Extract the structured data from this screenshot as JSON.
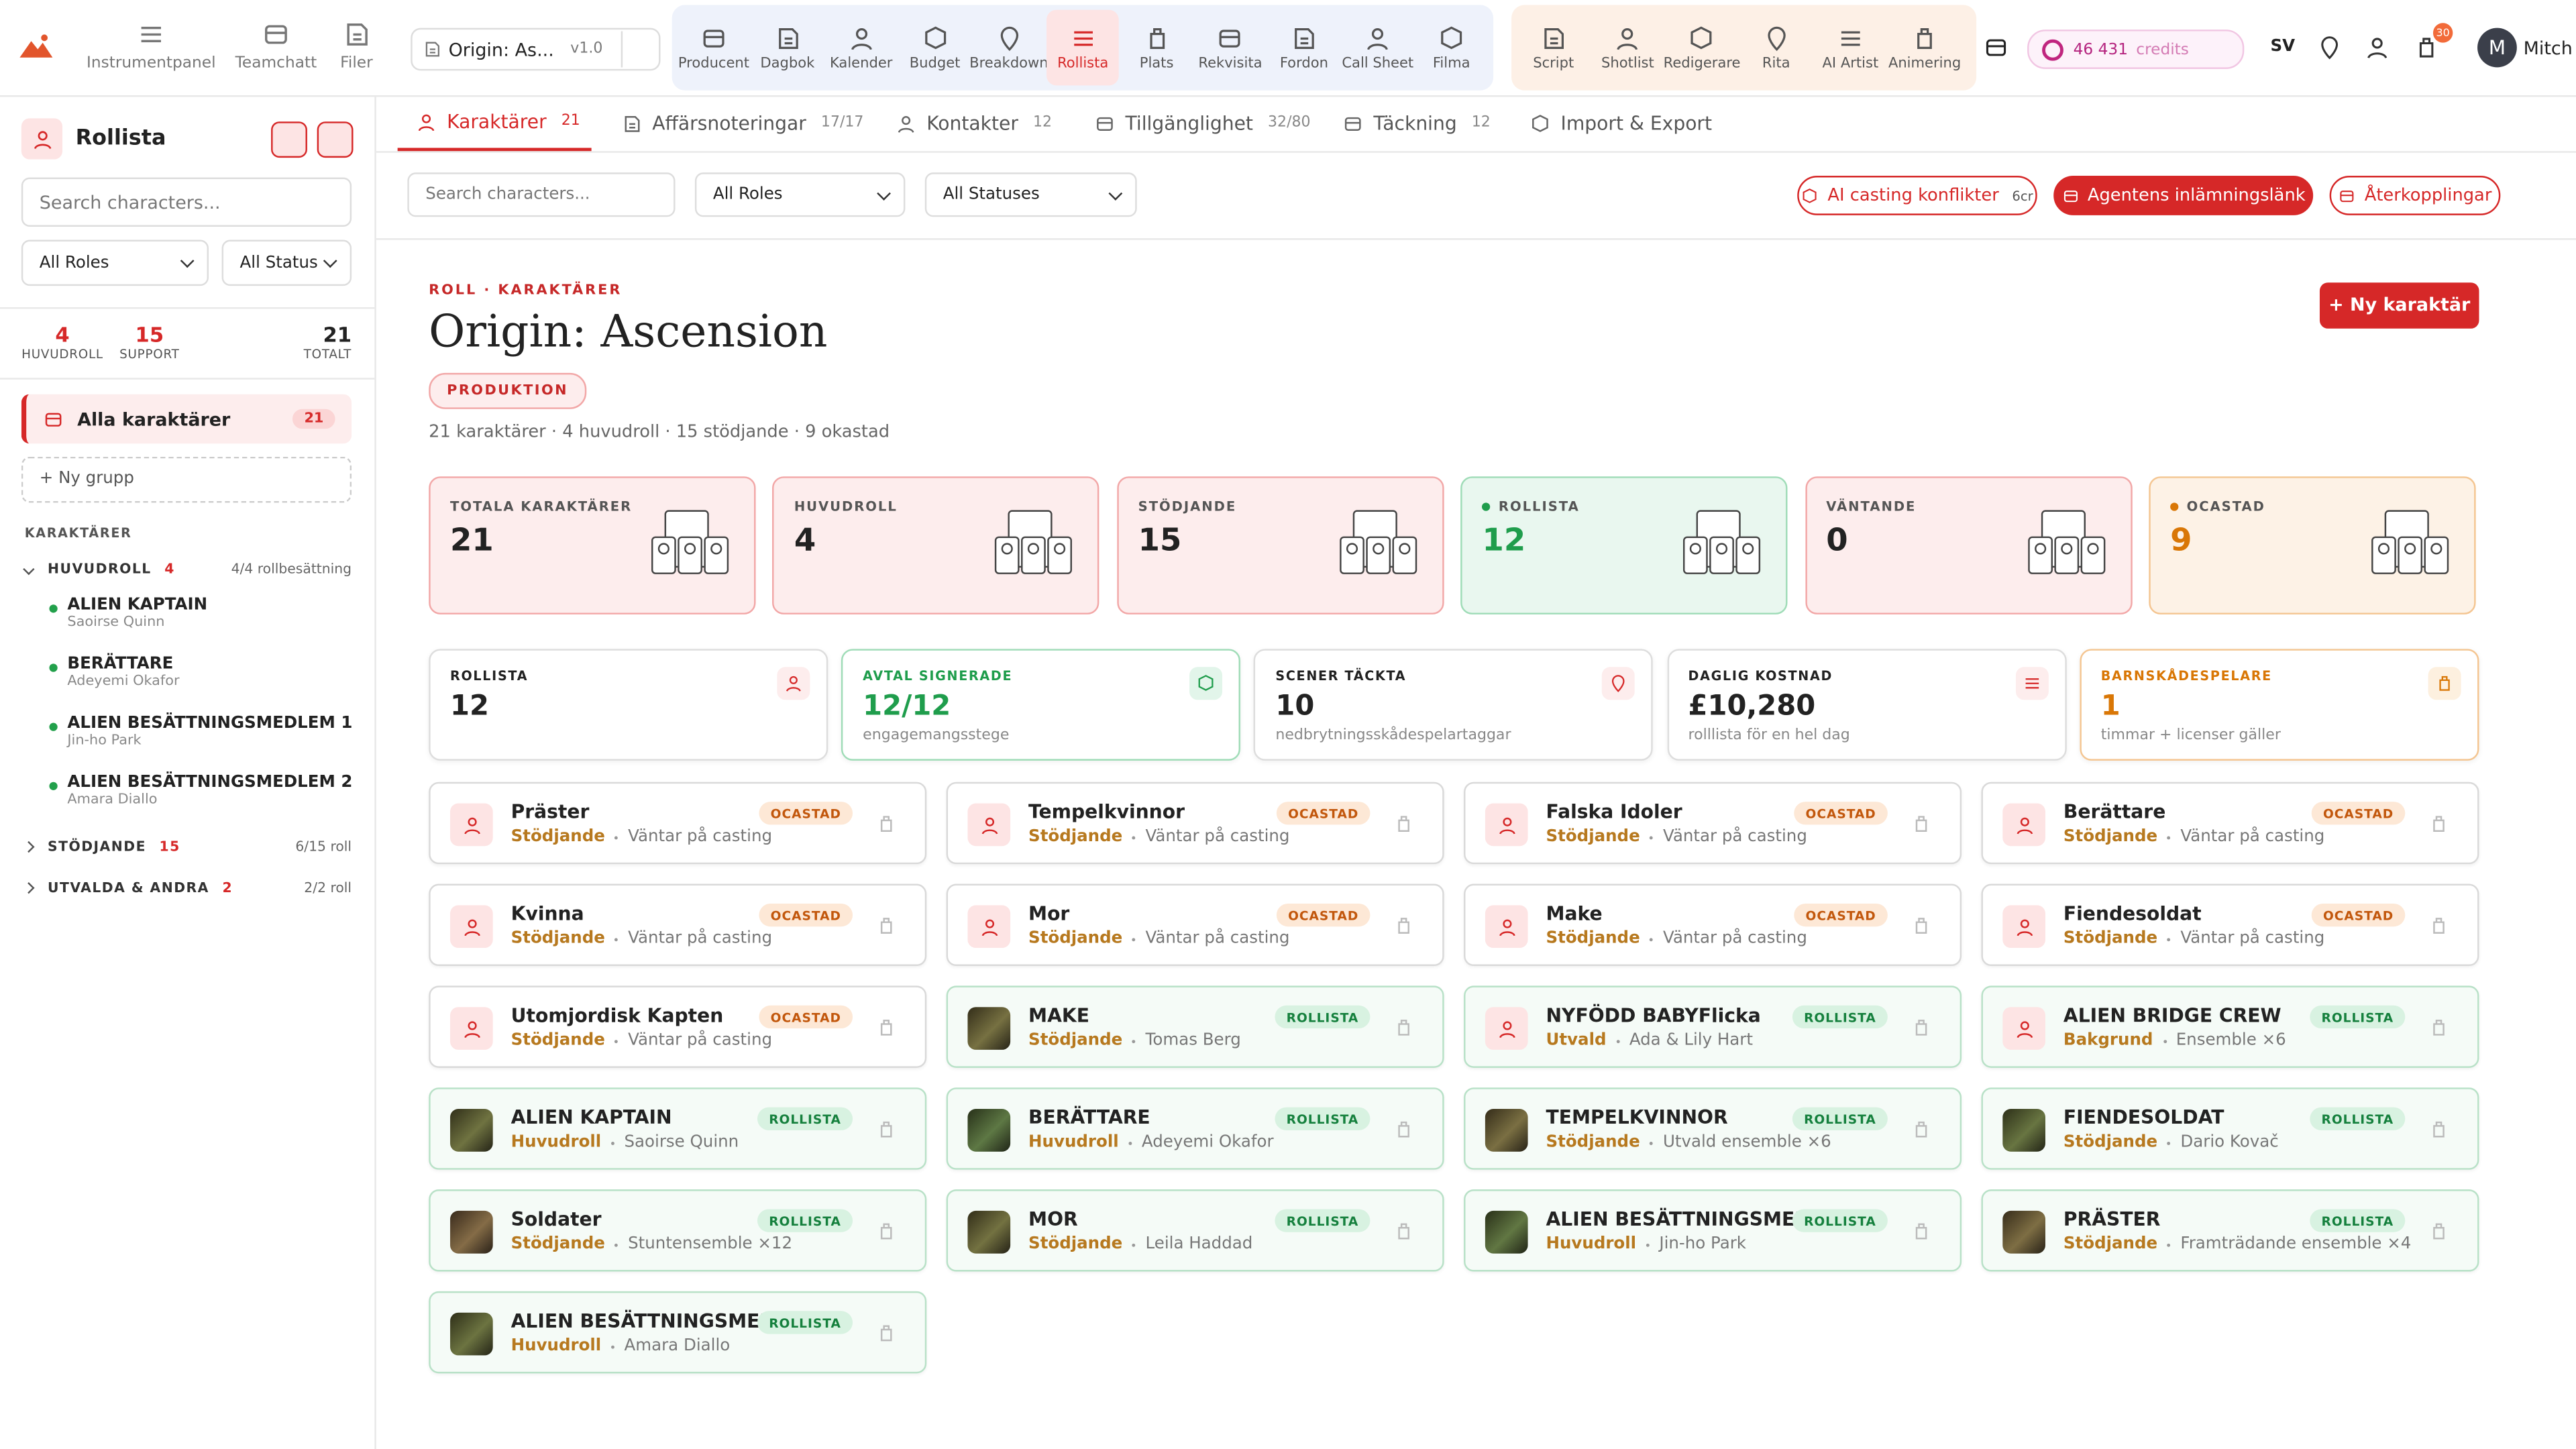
{
  "topbar": {
    "nav": [
      "Instrumentpanel",
      "Teamchatt",
      "Filer"
    ],
    "project": "Origin: As...",
    "version": "v1.0",
    "tools": [
      "Producent",
      "Dagbok",
      "Kalender",
      "Budget",
      "Breakdown",
      "Rollista",
      "Plats",
      "Rekvisita",
      "Fordon",
      "Call Sheet",
      "Filma"
    ],
    "active_tool": 5,
    "creative": [
      "Script",
      "Shotlist",
      "Redigerare",
      "Rita",
      "AI Artist",
      "Animering"
    ],
    "credits": "46 431",
    "credits_label": "credits",
    "language": "SV",
    "notifications": 30,
    "user_initial": "M",
    "user": "Mitch"
  },
  "sidebar": {
    "title": "Rollista",
    "search": "Search characters...",
    "role_filter": "All Roles",
    "status_filter": "All Status",
    "stats": [
      {
        "value": 4,
        "label": "HUVUDROLL"
      },
      {
        "value": 15,
        "label": "SUPPORT"
      },
      {
        "value": 21,
        "label": "TOTALT"
      }
    ],
    "all": {
      "label": "Alla karaktärer",
      "count": 21
    },
    "new_group": "+ Ny grupp",
    "section": "KARAKTÄRER",
    "groups": [
      {
        "name": "HUVUDROLL",
        "count": 4,
        "progress": "4/4 rollbesättning",
        "members": [
          {
            "name": "ALIEN KAPTAIN",
            "actor": "Saoirse Quinn"
          },
          {
            "name": "BERÄTTARE",
            "actor": "Adeyemi Okafor"
          },
          {
            "name": "ALIEN BESÄTTNINGSMEDLEM 1",
            "actor": "Jin-ho Park"
          },
          {
            "name": "ALIEN BESÄTTNINGSMEDLEM 2",
            "actor": "Amara Diallo"
          }
        ]
      },
      {
        "name": "STÖDJANDE",
        "count": 15,
        "progress": "6/15 roll"
      },
      {
        "name": "UTVALDA & ANDRA",
        "count": 2,
        "progress": "2/2 roll"
      }
    ]
  },
  "tabs": {
    "items": [
      {
        "label": "Karaktärer",
        "count": 21
      },
      {
        "label": "Affärsnoteringar",
        "count": "17/17"
      },
      {
        "label": "Kontakter",
        "count": 12
      },
      {
        "label": "Tillgänglighet",
        "count": "32/80"
      },
      {
        "label": "Täckning",
        "count": 12
      },
      {
        "label": "Import & Export"
      }
    ],
    "active": 0
  },
  "filters": {
    "search": "Search characters...",
    "roles": "All Roles",
    "statuses": "All Statuses",
    "actions": [
      {
        "label": "AI casting konflikter",
        "badge": "6cr",
        "style": "outline"
      },
      {
        "label": "Agentens inlämningslänk",
        "style": "solid"
      },
      {
        "label": "Återkopplingar",
        "style": "outline"
      }
    ]
  },
  "header": {
    "eyebrow": "ROLL · KARAKTÄRER",
    "title": "Origin: Ascension",
    "badge": "PRODUKTION",
    "summary": "21 karaktärer · 4 huvudroll · 15 stödjande · 9 okastad",
    "new_button": "+ Ny karaktär"
  },
  "stats": [
    {
      "label": "TOTALA KARAKTÄRER",
      "value": 21,
      "tone": "red"
    },
    {
      "label": "HUVUDROLL",
      "value": 4,
      "tone": "red"
    },
    {
      "label": "STÖDJANDE",
      "value": 15,
      "tone": "red"
    },
    {
      "label": "ROLLISTA",
      "value": 12,
      "tone": "green"
    },
    {
      "label": "VÄNTANDE",
      "value": 0,
      "tone": "red"
    },
    {
      "label": "OCASTAD",
      "value": 9,
      "tone": "orange"
    }
  ],
  "metrics": [
    {
      "label": "ROLLISTA",
      "value": 12,
      "tone": "neutral"
    },
    {
      "label": "AVTAL SIGNERADE",
      "value": "12/12",
      "sub": "engagemangsstege",
      "tone": "green"
    },
    {
      "label": "SCENER TÄCKTA",
      "value": 10,
      "sub": "nedbrytningsskådespelartaggar",
      "tone": "neutral"
    },
    {
      "label": "DAGLIG KOSTNAD",
      "value": "£10,280",
      "sub": "rolllista för en hel dag",
      "tone": "neutral"
    },
    {
      "label": "BARNSKÅDESPELARE",
      "value": 1,
      "sub": "timmar + licenser gäller",
      "tone": "orange"
    }
  ],
  "characters": [
    {
      "name": "Präster",
      "role": "Stödjande",
      "detail": "Väntar på casting",
      "status": "OCASTAD",
      "tone": "orange",
      "photo": false
    },
    {
      "name": "Tempelkvinnor",
      "role": "Stödjande",
      "detail": "Väntar på casting",
      "status": "OCASTAD",
      "tone": "orange",
      "photo": false
    },
    {
      "name": "Falska Idoler",
      "role": "Stödjande",
      "detail": "Väntar på casting",
      "status": "OCASTAD",
      "tone": "orange",
      "photo": false
    },
    {
      "name": "Berättare",
      "role": "Stödjande",
      "detail": "Väntar på casting",
      "status": "OCASTAD",
      "tone": "orange",
      "photo": false
    },
    {
      "name": "Kvinna",
      "role": "Stödjande",
      "detail": "Väntar på casting",
      "status": "OCASTAD",
      "tone": "orange",
      "photo": false
    },
    {
      "name": "Mor",
      "role": "Stödjande",
      "detail": "Väntar på casting",
      "status": "OCASTAD",
      "tone": "orange",
      "photo": false
    },
    {
      "name": "Make",
      "role": "Stödjande",
      "detail": "Väntar på casting",
      "status": "OCASTAD",
      "tone": "orange",
      "photo": false
    },
    {
      "name": "Fiendesoldat",
      "role": "Stödjande",
      "detail": "Väntar på casting",
      "status": "OCASTAD",
      "tone": "orange",
      "photo": false
    },
    {
      "name": "Utomjordisk Kapten",
      "role": "Stödjande",
      "detail": "Väntar på casting",
      "status": "OCASTAD",
      "tone": "orange",
      "photo": false
    },
    {
      "name": "MAKE",
      "role": "Stödjande",
      "detail": "Tomas Berg",
      "status": "ROLLISTA",
      "tone": "green",
      "photo": true
    },
    {
      "name": "NYFÖDD BABYFlicka",
      "role": "Utvald",
      "detail": "Ada & Lily Hart",
      "status": "ROLLISTA",
      "tone": "green",
      "photo": false
    },
    {
      "name": "ALIEN BRIDGE CREW",
      "role": "Bakgrund",
      "detail": "Ensemble ×6",
      "status": "ROLLISTA",
      "tone": "green",
      "photo": false
    },
    {
      "name": "ALIEN KAPTAIN",
      "role": "Huvudroll",
      "detail": "Saoirse Quinn",
      "status": "ROLLISTA",
      "tone": "green",
      "photo": true
    },
    {
      "name": "BERÄTTARE",
      "role": "Huvudroll",
      "detail": "Adeyemi Okafor",
      "status": "ROLLISTA",
      "tone": "green",
      "photo": true
    },
    {
      "name": "TEMPELKVINNOR",
      "role": "Stödjande",
      "detail": "Utvald ensemble ×6",
      "status": "ROLLISTA",
      "tone": "green",
      "photo": true
    },
    {
      "name": "FIENDESOLDAT",
      "role": "Stödjande",
      "detail": "Dario Kovač",
      "status": "ROLLISTA",
      "tone": "green",
      "photo": true
    },
    {
      "name": "Soldater",
      "role": "Stödjande",
      "detail": "Stuntensemble ×12",
      "status": "ROLLISTA",
      "tone": "green",
      "photo": true
    },
    {
      "name": "MOR",
      "role": "Stödjande",
      "detail": "Leila Haddad",
      "status": "ROLLISTA",
      "tone": "green",
      "photo": true
    },
    {
      "name": "ALIEN BESÄTTNINGSMED...",
      "role": "Huvudroll",
      "detail": "Jin-ho Park",
      "status": "ROLLISTA",
      "tone": "green",
      "photo": true
    },
    {
      "name": "PRÄSTER",
      "role": "Stödjande",
      "detail": "Framträdande ensemble ×4",
      "status": "ROLLISTA",
      "tone": "green",
      "photo": true
    },
    {
      "name": "ALIEN BESÄTTNINGSMED...",
      "role": "Huvudroll",
      "detail": "Amara Diallo",
      "status": "ROLLISTA",
      "tone": "green",
      "photo": true
    }
  ]
}
